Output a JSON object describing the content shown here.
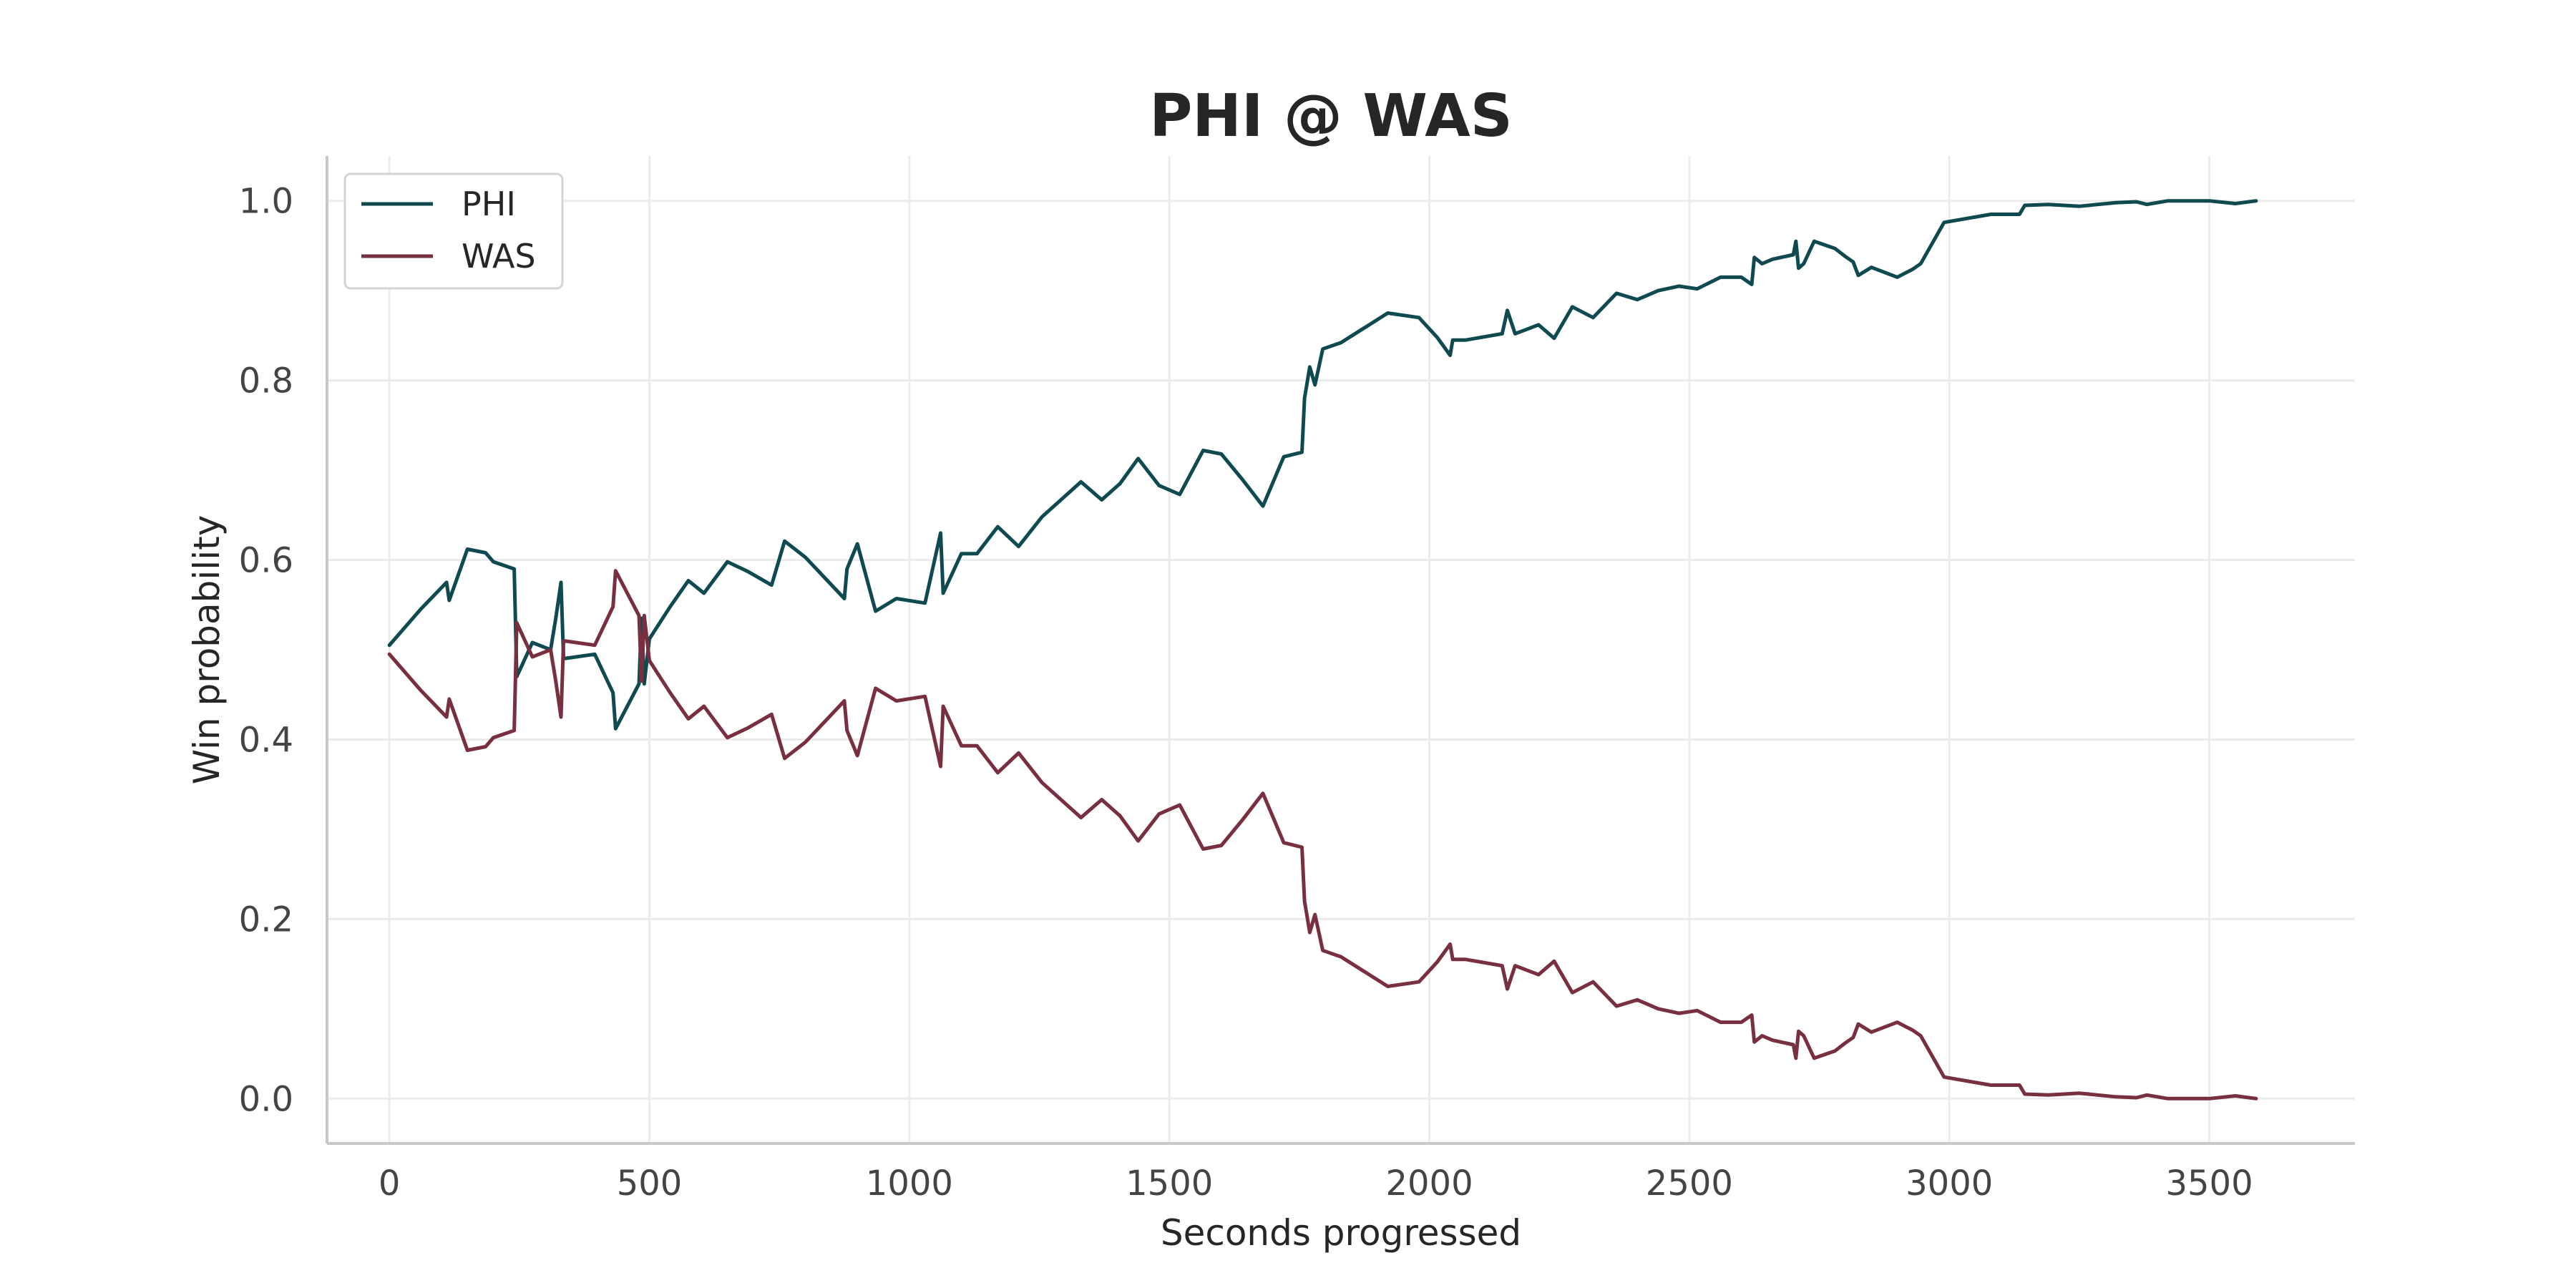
{
  "chart_data": {
    "type": "line",
    "title": "PHI @ WAS",
    "xlabel": "Seconds progressed",
    "ylabel": "Win probability",
    "xlim": [
      -120,
      3780
    ],
    "ylim": [
      -0.05,
      1.05
    ],
    "xticks": [
      0,
      500,
      1000,
      1500,
      2000,
      2500,
      3000,
      3500
    ],
    "yticks": [
      0.0,
      0.2,
      0.4,
      0.6,
      0.8,
      1.0
    ],
    "xtick_labels": [
      "0",
      "500",
      "1000",
      "1500",
      "2000",
      "2500",
      "3000",
      "3500"
    ],
    "ytick_labels": [
      "0.0",
      "0.2",
      "0.4",
      "0.6",
      "0.8",
      "1.0"
    ],
    "grid": true,
    "legend_position": "top-left",
    "series": [
      {
        "name": "PHI",
        "color": "#0f4a50",
        "x": [
          0,
          60,
          110,
          115,
          150,
          185,
          200,
          240,
          245,
          275,
          310,
          320,
          330,
          335,
          395,
          430,
          435,
          480,
          485,
          490,
          500,
          540,
          575,
          605,
          650,
          690,
          735,
          760,
          800,
          875,
          880,
          900,
          935,
          975,
          1030,
          1060,
          1065,
          1100,
          1130,
          1170,
          1210,
          1255,
          1330,
          1370,
          1405,
          1440,
          1480,
          1520,
          1565,
          1600,
          1640,
          1680,
          1720,
          1755,
          1760,
          1770,
          1780,
          1795,
          1830,
          1920,
          1980,
          2015,
          2040,
          2045,
          2070,
          2140,
          2150,
          2165,
          2210,
          2240,
          2275,
          2315,
          2360,
          2400,
          2440,
          2480,
          2515,
          2560,
          2600,
          2620,
          2625,
          2640,
          2660,
          2700,
          2705,
          2710,
          2720,
          2740,
          2780,
          2800,
          2815,
          2825,
          2850,
          2900,
          2930,
          2945,
          2990,
          3080,
          3135,
          3145,
          3190,
          3250,
          3320,
          3360,
          3380,
          3420,
          3450,
          3500,
          3550,
          3590
        ],
        "values": [
          0.505,
          0.545,
          0.575,
          0.555,
          0.612,
          0.608,
          0.598,
          0.59,
          0.47,
          0.508,
          0.5,
          0.535,
          0.575,
          0.49,
          0.495,
          0.452,
          0.412,
          0.462,
          0.535,
          0.462,
          0.512,
          0.548,
          0.577,
          0.563,
          0.598,
          0.587,
          0.572,
          0.621,
          0.603,
          0.557,
          0.59,
          0.618,
          0.543,
          0.557,
          0.552,
          0.63,
          0.563,
          0.607,
          0.607,
          0.637,
          0.615,
          0.648,
          0.687,
          0.667,
          0.685,
          0.713,
          0.683,
          0.673,
          0.722,
          0.718,
          0.69,
          0.66,
          0.715,
          0.72,
          0.78,
          0.815,
          0.795,
          0.835,
          0.842,
          0.875,
          0.87,
          0.848,
          0.828,
          0.845,
          0.845,
          0.852,
          0.878,
          0.852,
          0.862,
          0.847,
          0.882,
          0.87,
          0.897,
          0.89,
          0.9,
          0.905,
          0.902,
          0.915,
          0.915,
          0.907,
          0.937,
          0.93,
          0.935,
          0.94,
          0.955,
          0.925,
          0.93,
          0.955,
          0.947,
          0.938,
          0.932,
          0.917,
          0.926,
          0.915,
          0.924,
          0.93,
          0.976,
          0.985,
          0.985,
          0.995,
          0.996,
          0.994,
          0.998,
          0.999,
          0.996,
          1.0,
          1.0,
          1.0,
          0.997,
          1.0
        ]
      },
      {
        "name": "WAS",
        "color": "#782f40",
        "x": [
          0,
          60,
          110,
          115,
          150,
          185,
          200,
          240,
          245,
          275,
          310,
          320,
          330,
          335,
          395,
          430,
          435,
          480,
          485,
          490,
          500,
          540,
          575,
          605,
          650,
          690,
          735,
          760,
          800,
          875,
          880,
          900,
          935,
          975,
          1030,
          1060,
          1065,
          1100,
          1130,
          1170,
          1210,
          1255,
          1330,
          1370,
          1405,
          1440,
          1480,
          1520,
          1565,
          1600,
          1640,
          1680,
          1720,
          1755,
          1760,
          1770,
          1780,
          1795,
          1830,
          1920,
          1980,
          2015,
          2040,
          2045,
          2070,
          2140,
          2150,
          2165,
          2210,
          2240,
          2275,
          2315,
          2360,
          2400,
          2440,
          2480,
          2515,
          2560,
          2600,
          2620,
          2625,
          2640,
          2660,
          2700,
          2705,
          2710,
          2720,
          2740,
          2780,
          2800,
          2815,
          2825,
          2850,
          2900,
          2930,
          2945,
          2990,
          3080,
          3135,
          3145,
          3190,
          3250,
          3320,
          3360,
          3380,
          3420,
          3450,
          3500,
          3550,
          3590
        ],
        "values": [
          0.495,
          0.455,
          0.425,
          0.445,
          0.388,
          0.392,
          0.402,
          0.41,
          0.53,
          0.492,
          0.5,
          0.465,
          0.425,
          0.51,
          0.505,
          0.548,
          0.588,
          0.538,
          0.465,
          0.538,
          0.488,
          0.452,
          0.423,
          0.437,
          0.402,
          0.413,
          0.428,
          0.379,
          0.397,
          0.443,
          0.41,
          0.382,
          0.457,
          0.443,
          0.448,
          0.37,
          0.437,
          0.393,
          0.393,
          0.363,
          0.385,
          0.352,
          0.313,
          0.333,
          0.315,
          0.287,
          0.317,
          0.327,
          0.278,
          0.282,
          0.31,
          0.34,
          0.285,
          0.28,
          0.22,
          0.185,
          0.205,
          0.165,
          0.158,
          0.125,
          0.13,
          0.152,
          0.172,
          0.155,
          0.155,
          0.148,
          0.122,
          0.148,
          0.138,
          0.153,
          0.118,
          0.13,
          0.103,
          0.11,
          0.1,
          0.095,
          0.098,
          0.085,
          0.085,
          0.093,
          0.063,
          0.07,
          0.065,
          0.06,
          0.045,
          0.075,
          0.07,
          0.045,
          0.053,
          0.062,
          0.068,
          0.083,
          0.074,
          0.085,
          0.076,
          0.07,
          0.024,
          0.015,
          0.015,
          0.005,
          0.004,
          0.006,
          0.002,
          0.001,
          0.004,
          0.0,
          0.0,
          0.0,
          0.003,
          0.0
        ]
      }
    ]
  }
}
